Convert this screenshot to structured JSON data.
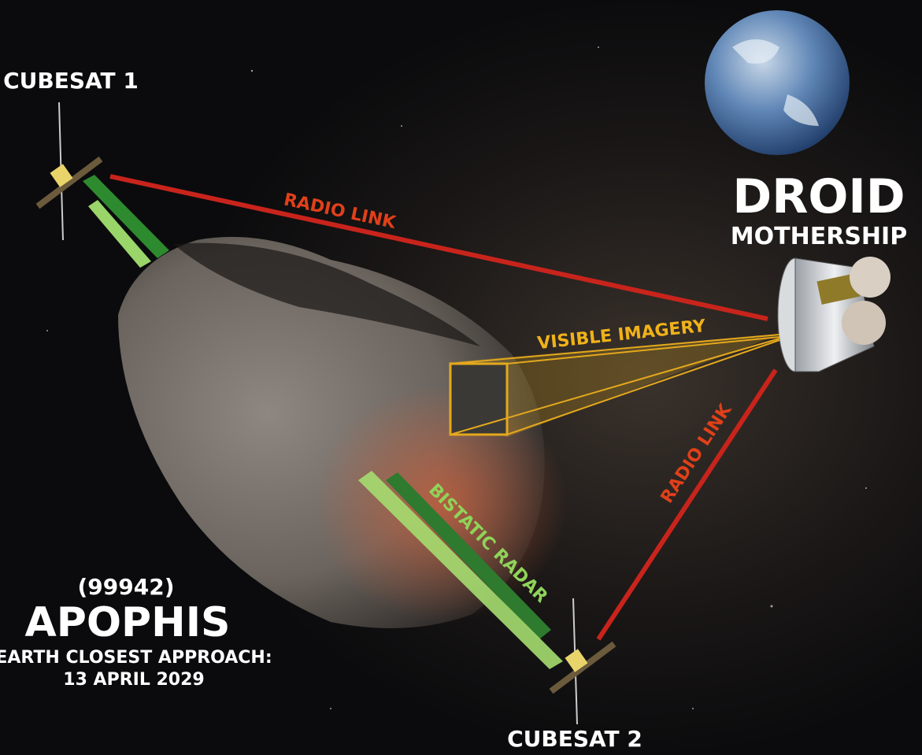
{
  "cubesats": [
    {
      "label": "CUBESAT 1"
    },
    {
      "label": "CUBESAT 2"
    }
  ],
  "mothership": {
    "name": "DROID",
    "subtitle": "MOTHERSHIP"
  },
  "links": [
    {
      "label": "RADIO LINK"
    },
    {
      "label": "RADIO LINK"
    },
    {
      "label": "VISIBLE IMAGERY"
    },
    {
      "label": "BISTATIC RADAR"
    }
  ],
  "target": {
    "designation": "(99942)",
    "name": "APOPHIS",
    "caption": "EARTH CLOSEST APPROACH:",
    "date": "13 APRIL 2029"
  }
}
